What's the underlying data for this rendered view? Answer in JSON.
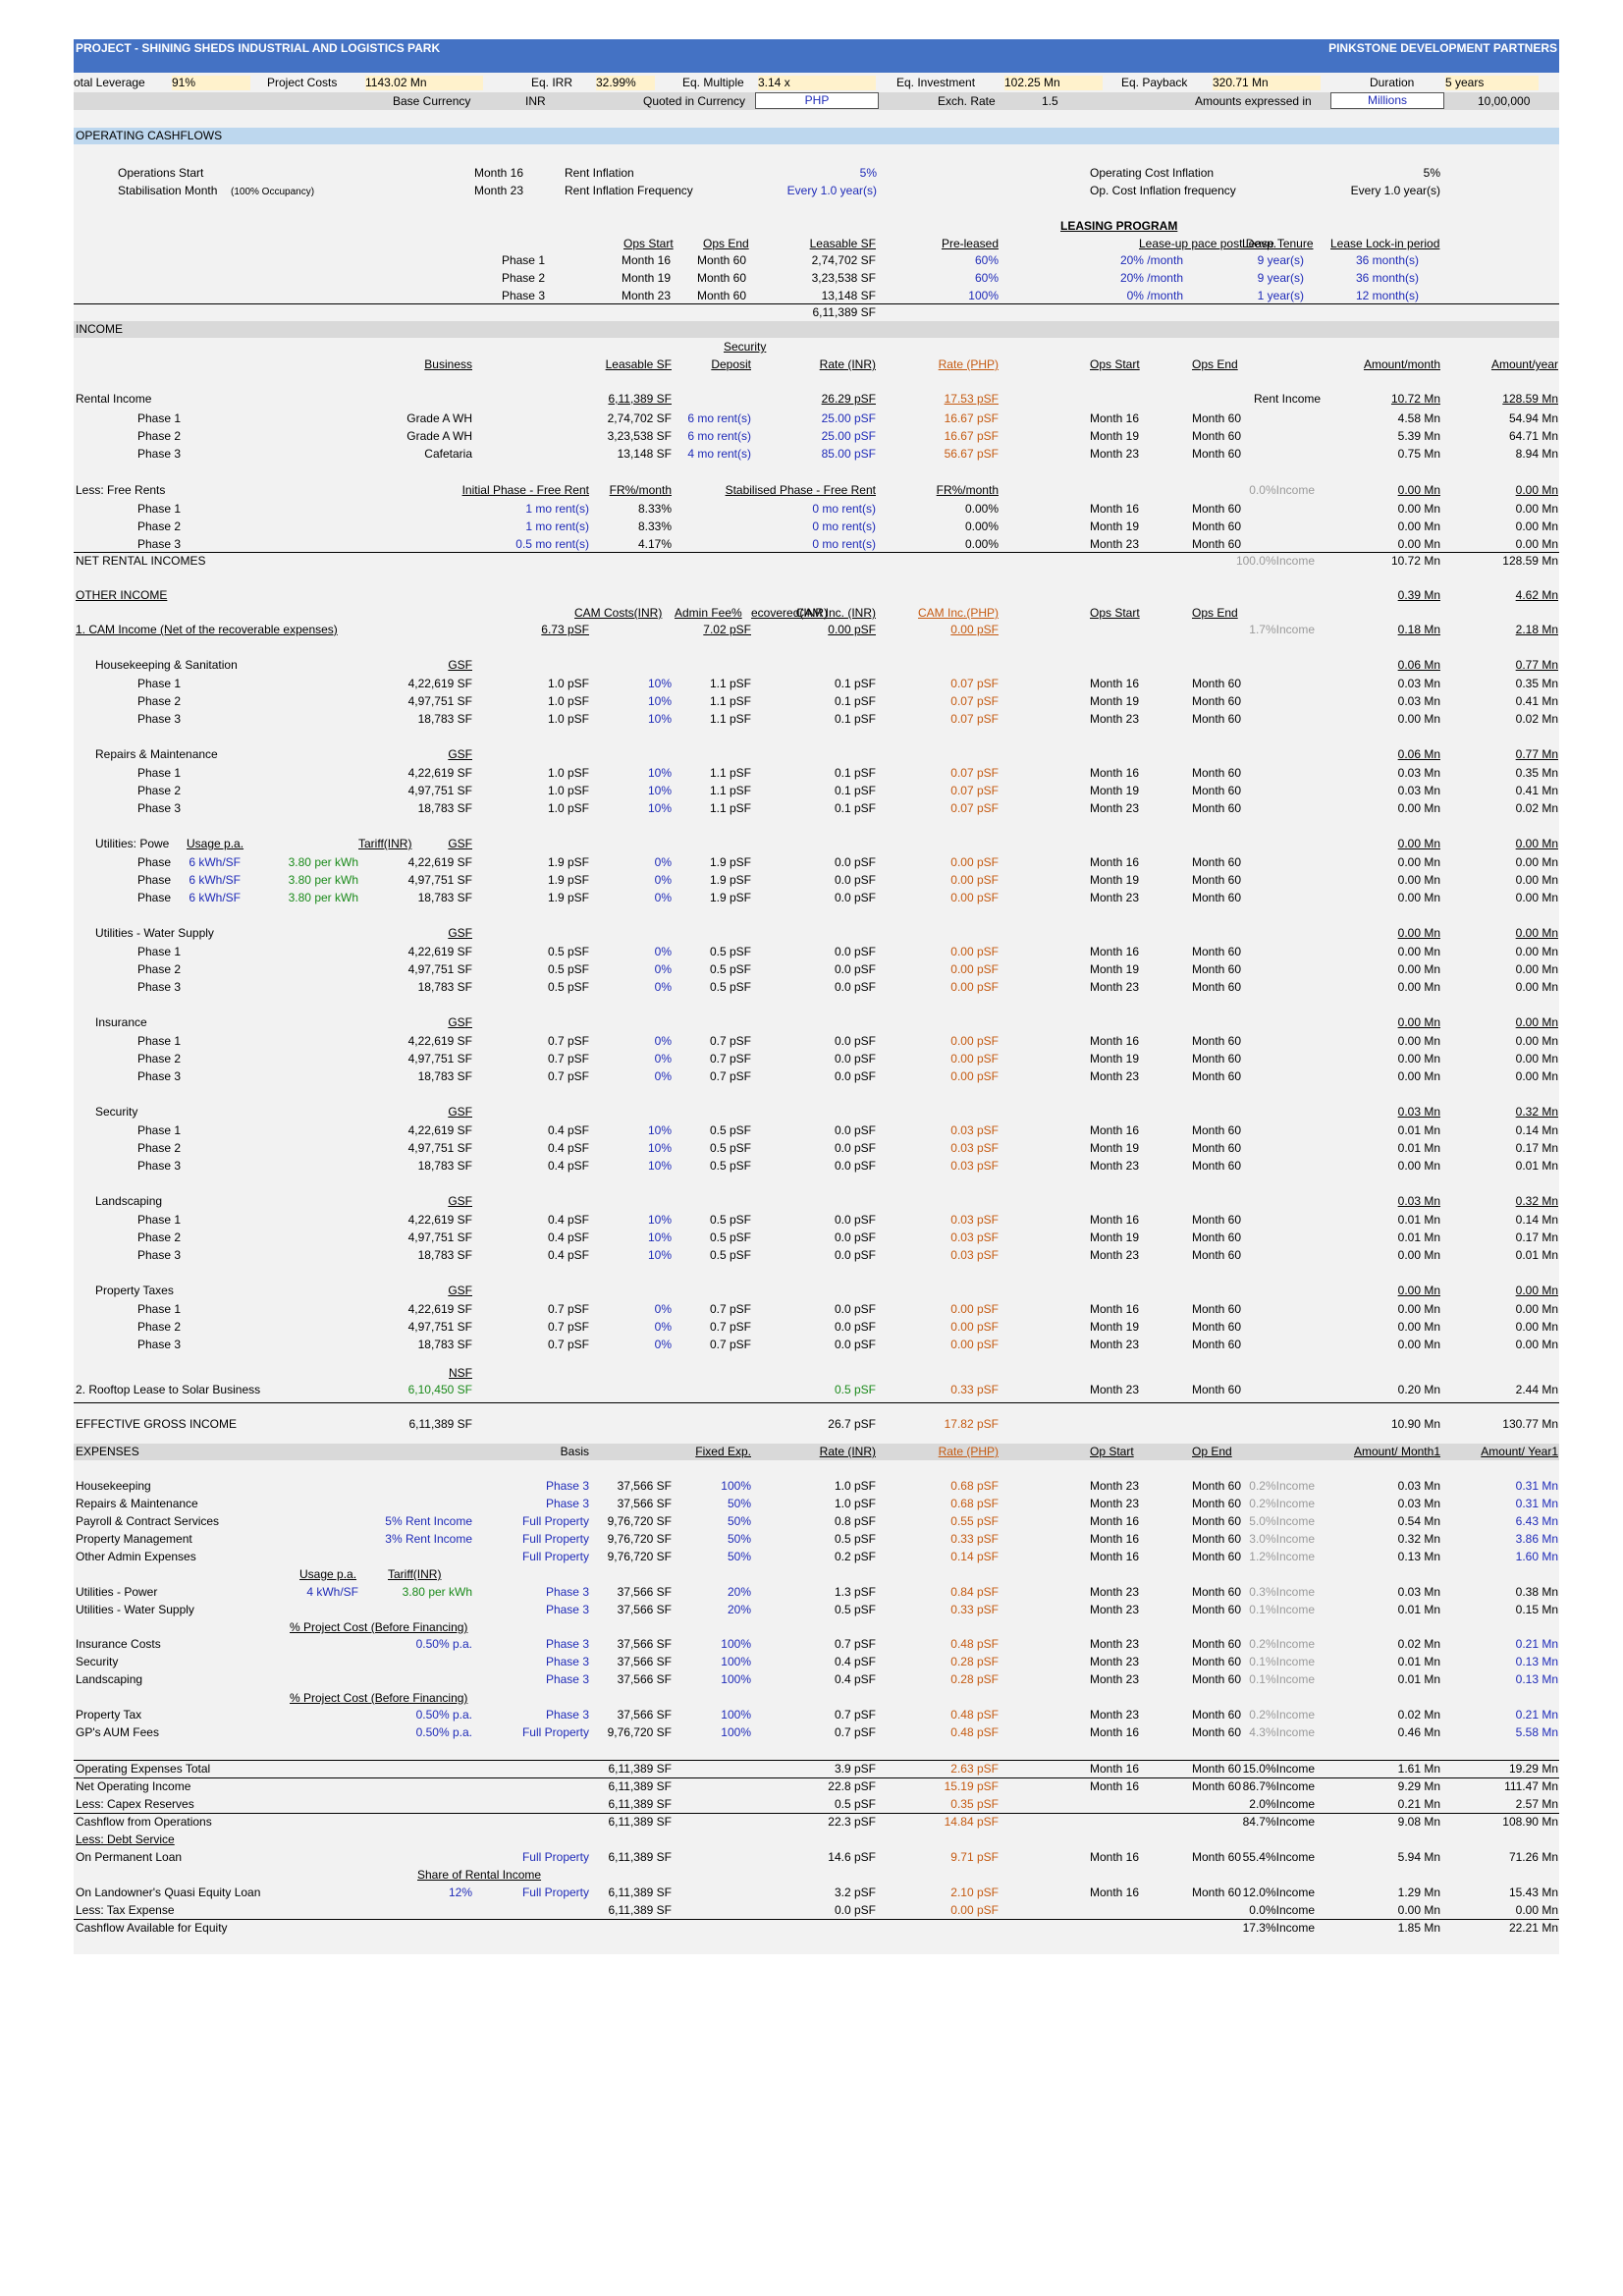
{
  "header": {
    "project": "PROJECT - SHINING SHEDS INDUSTRIAL AND LOGISTICS PARK",
    "company": "PINKSTONE DEVELOPMENT PARTNERS"
  },
  "metrics": {
    "total_leverage_label": "otal Leverage",
    "total_leverage": "91%",
    "project_costs_label": "Project Costs",
    "project_costs": "1143.02 Mn",
    "eq_irr_label": "Eq. IRR",
    "eq_irr": "32.99%",
    "eq_multiple_label": "Eq. Multiple",
    "eq_multiple": "3.14 x",
    "eq_investment_label": "Eq. Investment",
    "eq_investment": "102.25 Mn",
    "eq_payback_label": "Eq. Payback",
    "eq_payback": "320.71 Mn",
    "duration_label": "Duration",
    "duration": "5 years"
  },
  "currency": {
    "base_label": "Base Currency",
    "base": "INR",
    "quoted_label": "Quoted in Currency",
    "quoted": "PHP",
    "exch_label": "Exch. Rate",
    "exch": "1.5",
    "expressed_label": "Amounts expressed in",
    "expressed": "Millions",
    "divisor": "10,00,000"
  },
  "opcf": {
    "title": "OPERATING CASHFLOWS",
    "ops_start_label": "Operations Start",
    "ops_start": "Month 16",
    "stab_label": "Stabilisation Month",
    "stab_note": "(100% Occupancy)",
    "stab": "Month 23",
    "rent_inf_label": "Rent Inflation",
    "rent_inf": "5%",
    "rent_freq_label": "Rent Inflation Frequency",
    "rent_freq": "Every 1.0 year(s)",
    "opcost_inf_label": "Operating Cost Inflation",
    "opcost_inf": "5%",
    "opcost_freq_label": "Op. Cost Inflation frequency",
    "opcost_freq": "Every 1.0 year(s)",
    "leasing_title": "LEASING PROGRAM",
    "cols": [
      "Ops Start",
      "Ops End",
      "Leasable SF",
      "Pre-leased",
      "Lease-up pace post Devp.",
      "Lease Tenure",
      "Lease Lock-in period"
    ],
    "rows": [
      [
        "Phase 1",
        "Month 16",
        "Month 60",
        "2,74,702 SF",
        "60%",
        "20% /month",
        "9 year(s)",
        "36 month(s)"
      ],
      [
        "Phase 2",
        "Month 19",
        "Month 60",
        "3,23,538 SF",
        "60%",
        "20% /month",
        "9 year(s)",
        "36 month(s)"
      ],
      [
        "Phase 3",
        "Month 23",
        "Month 60",
        "13,148 SF",
        "100%",
        "0% /month",
        "1 year(s)",
        "12 month(s)"
      ]
    ],
    "total_sf": "6,11,389 SF"
  },
  "income": {
    "title": "INCOME",
    "cols": [
      "Business",
      "Leasable SF",
      "Security",
      "Deposit",
      "Rate (INR)",
      "Rate (PHP)",
      "Ops Start",
      "Ops End",
      "Amount/month",
      "Amount/year"
    ],
    "rental_label": "Rental Income",
    "rental_sf": "6,11,389 SF",
    "rental_rate": "26.29 pSF",
    "rental_php": "17.53 pSF",
    "rental_tag": "Rent Income",
    "rental_month": "10.72 Mn",
    "rental_year": "128.59 Mn",
    "rental_rows": [
      [
        "Phase 1",
        "Grade A WH",
        "2,74,702 SF",
        "6 mo rent(s)",
        "25.00 pSF",
        "16.67 pSF",
        "Month 16",
        "Month 60",
        "4.58 Mn",
        "54.94 Mn"
      ],
      [
        "Phase 2",
        "Grade A WH",
        "3,23,538 SF",
        "6 mo rent(s)",
        "25.00 pSF",
        "16.67 pSF",
        "Month 19",
        "Month 60",
        "5.39 Mn",
        "64.71 Mn"
      ],
      [
        "Phase 3",
        "Cafetaria",
        "13,148 SF",
        "4 mo rent(s)",
        "85.00 pSF",
        "56.67 pSF",
        "Month 23",
        "Month 60",
        "0.75 Mn",
        "8.94 Mn"
      ]
    ],
    "free_label": "Less: Free Rents",
    "free_cols": [
      "Initial Phase - Free Rent",
      "FR%/month",
      "Stabilised Phase - Free Rent",
      "FR%/month"
    ],
    "free_pct": "0.0%Income",
    "free_month": "0.00 Mn",
    "free_year": "0.00 Mn",
    "free_rows": [
      [
        "Phase 1",
        "1 mo rent(s)",
        "8.33%",
        "0 mo rent(s)",
        "0.00%",
        "Month 16",
        "Month 60",
        "0.00 Mn",
        "0.00 Mn"
      ],
      [
        "Phase 2",
        "1 mo rent(s)",
        "8.33%",
        "0 mo rent(s)",
        "0.00%",
        "Month 19",
        "Month 60",
        "0.00 Mn",
        "0.00 Mn"
      ],
      [
        "Phase 3",
        "0.5 mo rent(s)",
        "4.17%",
        "0 mo rent(s)",
        "0.00%",
        "Month 23",
        "Month 60",
        "0.00 Mn",
        "0.00 Mn"
      ]
    ],
    "net_label": "NET RENTAL INCOMES",
    "net_pct": "100.0%Income",
    "net_month": "10.72 Mn",
    "net_year": "128.59 Mn"
  },
  "other": {
    "title": "OTHER INCOME",
    "month": "0.39 Mn",
    "year": "4.62 Mn",
    "cols": [
      "CAM Costs(INR)",
      "Admin Fee%",
      "ecovered(INR)",
      "CAM Inc. (INR)",
      "CAM Inc.(PHP)",
      "Ops Start",
      "Ops End"
    ],
    "cam_label": "1. CAM Income (Net of the recoverable expenses)",
    "cam_cost": "6.73 pSF",
    "cam_rec": "7.02 pSF",
    "cam_inc": "0.00 pSF",
    "cam_php": "0.00 pSF",
    "cam_pct": "1.7%Income",
    "cam_month": "0.18 Mn",
    "cam_year": "2.18 Mn",
    "gsf": "GSF",
    "groups": [
      {
        "name": "Housekeeping & Sanitation",
        "month": "0.06 Mn",
        "year": "0.77 Mn",
        "rows": [
          [
            "Phase 1",
            "4,22,619 SF",
            "1.0 pSF",
            "10%",
            "1.1 pSF",
            "0.1 pSF",
            "0.07 pSF",
            "Month 16",
            "Month 60",
            "0.03 Mn",
            "0.35 Mn"
          ],
          [
            "Phase 2",
            "4,97,751 SF",
            "1.0 pSF",
            "10%",
            "1.1 pSF",
            "0.1 pSF",
            "0.07 pSF",
            "Month 19",
            "Month 60",
            "0.03 Mn",
            "0.41 Mn"
          ],
          [
            "Phase 3",
            "18,783 SF",
            "1.0 pSF",
            "10%",
            "1.1 pSF",
            "0.1 pSF",
            "0.07 pSF",
            "Month 23",
            "Month 60",
            "0.00 Mn",
            "0.02 Mn"
          ]
        ]
      },
      {
        "name": "Repairs & Maintenance",
        "month": "0.06 Mn",
        "year": "0.77 Mn",
        "rows": [
          [
            "Phase 1",
            "4,22,619 SF",
            "1.0 pSF",
            "10%",
            "1.1 pSF",
            "0.1 pSF",
            "0.07 pSF",
            "Month 16",
            "Month 60",
            "0.03 Mn",
            "0.35 Mn"
          ],
          [
            "Phase 2",
            "4,97,751 SF",
            "1.0 pSF",
            "10%",
            "1.1 pSF",
            "0.1 pSF",
            "0.07 pSF",
            "Month 19",
            "Month 60",
            "0.03 Mn",
            "0.41 Mn"
          ],
          [
            "Phase 3",
            "18,783 SF",
            "1.0 pSF",
            "10%",
            "1.1 pSF",
            "0.1 pSF",
            "0.07 pSF",
            "Month 23",
            "Month 60",
            "0.00 Mn",
            "0.02 Mn"
          ]
        ]
      },
      {
        "name": "Utilities: Powe",
        "usage_label": "Usage p.a.",
        "tariff_label": "Tariff(INR)",
        "month": "0.00 Mn",
        "year": "0.00 Mn",
        "rows": [
          [
            "Phase",
            "4,22,619 SF",
            "1.9 pSF",
            "0%",
            "1.9 pSF",
            "0.0 pSF",
            "0.00 pSF",
            "Month 16",
            "Month 60",
            "0.00 Mn",
            "0.00 Mn",
            "6 kWh/SF",
            "3.80 per kWh"
          ],
          [
            "Phase",
            "4,97,751 SF",
            "1.9 pSF",
            "0%",
            "1.9 pSF",
            "0.0 pSF",
            "0.00 pSF",
            "Month 19",
            "Month 60",
            "0.00 Mn",
            "0.00 Mn",
            "6 kWh/SF",
            "3.80 per kWh"
          ],
          [
            "Phase",
            "18,783 SF",
            "1.9 pSF",
            "0%",
            "1.9 pSF",
            "0.0 pSF",
            "0.00 pSF",
            "Month 23",
            "Month 60",
            "0.00 Mn",
            "0.00 Mn",
            "6 kWh/SF",
            "3.80 per kWh"
          ]
        ]
      },
      {
        "name": "Utilities - Water Supply",
        "month": "0.00 Mn",
        "year": "0.00 Mn",
        "rows": [
          [
            "Phase 1",
            "4,22,619 SF",
            "0.5 pSF",
            "0%",
            "0.5 pSF",
            "0.0 pSF",
            "0.00 pSF",
            "Month 16",
            "Month 60",
            "0.00 Mn",
            "0.00 Mn"
          ],
          [
            "Phase 2",
            "4,97,751 SF",
            "0.5 pSF",
            "0%",
            "0.5 pSF",
            "0.0 pSF",
            "0.00 pSF",
            "Month 19",
            "Month 60",
            "0.00 Mn",
            "0.00 Mn"
          ],
          [
            "Phase 3",
            "18,783 SF",
            "0.5 pSF",
            "0%",
            "0.5 pSF",
            "0.0 pSF",
            "0.00 pSF",
            "Month 23",
            "Month 60",
            "0.00 Mn",
            "0.00 Mn"
          ]
        ]
      },
      {
        "name": "Insurance",
        "month": "0.00 Mn",
        "year": "0.00 Mn",
        "rows": [
          [
            "Phase 1",
            "4,22,619 SF",
            "0.7 pSF",
            "0%",
            "0.7 pSF",
            "0.0 pSF",
            "0.00 pSF",
            "Month 16",
            "Month 60",
            "0.00 Mn",
            "0.00 Mn"
          ],
          [
            "Phase 2",
            "4,97,751 SF",
            "0.7 pSF",
            "0%",
            "0.7 pSF",
            "0.0 pSF",
            "0.00 pSF",
            "Month 19",
            "Month 60",
            "0.00 Mn",
            "0.00 Mn"
          ],
          [
            "Phase 3",
            "18,783 SF",
            "0.7 pSF",
            "0%",
            "0.7 pSF",
            "0.0 pSF",
            "0.00 pSF",
            "Month 23",
            "Month 60",
            "0.00 Mn",
            "0.00 Mn"
          ]
        ]
      },
      {
        "name": "Security",
        "month": "0.03 Mn",
        "year": "0.32 Mn",
        "rows": [
          [
            "Phase 1",
            "4,22,619 SF",
            "0.4 pSF",
            "10%",
            "0.5 pSF",
            "0.0 pSF",
            "0.03 pSF",
            "Month 16",
            "Month 60",
            "0.01 Mn",
            "0.14 Mn"
          ],
          [
            "Phase 2",
            "4,97,751 SF",
            "0.4 pSF",
            "10%",
            "0.5 pSF",
            "0.0 pSF",
            "0.03 pSF",
            "Month 19",
            "Month 60",
            "0.01 Mn",
            "0.17 Mn"
          ],
          [
            "Phase 3",
            "18,783 SF",
            "0.4 pSF",
            "10%",
            "0.5 pSF",
            "0.0 pSF",
            "0.03 pSF",
            "Month 23",
            "Month 60",
            "0.00 Mn",
            "0.01 Mn"
          ]
        ]
      },
      {
        "name": "Landscaping",
        "month": "0.03 Mn",
        "year": "0.32 Mn",
        "rows": [
          [
            "Phase 1",
            "4,22,619 SF",
            "0.4 pSF",
            "10%",
            "0.5 pSF",
            "0.0 pSF",
            "0.03 pSF",
            "Month 16",
            "Month 60",
            "0.01 Mn",
            "0.14 Mn"
          ],
          [
            "Phase 2",
            "4,97,751 SF",
            "0.4 pSF",
            "10%",
            "0.5 pSF",
            "0.0 pSF",
            "0.03 pSF",
            "Month 19",
            "Month 60",
            "0.01 Mn",
            "0.17 Mn"
          ],
          [
            "Phase 3",
            "18,783 SF",
            "0.4 pSF",
            "10%",
            "0.5 pSF",
            "0.0 pSF",
            "0.03 pSF",
            "Month 23",
            "Month 60",
            "0.00 Mn",
            "0.01 Mn"
          ]
        ]
      },
      {
        "name": "Property Taxes",
        "month": "0.00 Mn",
        "year": "0.00 Mn",
        "rows": [
          [
            "Phase 1",
            "4,22,619 SF",
            "0.7 pSF",
            "0%",
            "0.7 pSF",
            "0.0 pSF",
            "0.00 pSF",
            "Month 16",
            "Month 60",
            "0.00 Mn",
            "0.00 Mn"
          ],
          [
            "Phase 2",
            "4,97,751 SF",
            "0.7 pSF",
            "0%",
            "0.7 pSF",
            "0.0 pSF",
            "0.00 pSF",
            "Month 19",
            "Month 60",
            "0.00 Mn",
            "0.00 Mn"
          ],
          [
            "Phase 3",
            "18,783 SF",
            "0.7 pSF",
            "0%",
            "0.7 pSF",
            "0.0 pSF",
            "0.00 pSF",
            "Month 23",
            "Month 60",
            "0.00 Mn",
            "0.00 Mn"
          ]
        ]
      }
    ],
    "nsf": "NSF",
    "rooftop": [
      "2. Rooftop Lease to Solar Business",
      "6,10,450 SF",
      "0.5 pSF",
      "0.33 pSF",
      "Month 23",
      "Month 60",
      "0.20 Mn",
      "2.44 Mn"
    ]
  },
  "egi": [
    "EFFECTIVE GROSS INCOME",
    "6,11,389 SF",
    "26.7 pSF",
    "17.82 pSF",
    "10.90 Mn",
    "130.77 Mn"
  ],
  "expenses": {
    "title": "EXPENSES",
    "cols": [
      "Basis",
      "Fixed Exp.",
      "Rate (INR)",
      "Rate (PHP)",
      "Op Start",
      "Op End",
      "Amount/ Month1",
      "Amount/ Year1"
    ],
    "usage_label": "Usage p.a.",
    "tariff_label": "Tariff(INR)",
    "pct_cost_label": "% Project Cost (Before Financing)",
    "rows_a": [
      [
        "Housekeeping",
        "",
        "Phase 3",
        "37,566 SF",
        "100%",
        "1.0 pSF",
        "0.68 pSF",
        "Month 23",
        "Month 60",
        "0.2%Income",
        "0.03 Mn",
        "0.31 Mn"
      ],
      [
        "Repairs & Maintenance",
        "",
        "Phase 3",
        "37,566 SF",
        "50%",
        "1.0 pSF",
        "0.68 pSF",
        "Month 23",
        "Month 60",
        "0.2%Income",
        "0.03 Mn",
        "0.31 Mn"
      ],
      [
        "Payroll & Contract Services",
        "5% Rent Income",
        "Full Property",
        "9,76,720 SF",
        "50%",
        "0.8 pSF",
        "0.55 pSF",
        "Month 16",
        "Month 60",
        "5.0%Income",
        "0.54 Mn",
        "6.43 Mn"
      ],
      [
        "Property Management",
        "3% Rent Income",
        "Full Property",
        "9,76,720 SF",
        "50%",
        "0.5 pSF",
        "0.33 pSF",
        "Month 16",
        "Month 60",
        "3.0%Income",
        "0.32 Mn",
        "3.86 Mn"
      ],
      [
        "Other Admin Expenses",
        "",
        "Full Property",
        "9,76,720 SF",
        "50%",
        "0.2 pSF",
        "0.14 pSF",
        "Month 16",
        "Month 60",
        "1.2%Income",
        "0.13 Mn",
        "1.60 Mn"
      ]
    ],
    "rows_b": [
      [
        "Utilities - Power",
        "4 kWh/SF",
        "3.80 per kWh",
        "Phase 3",
        "37,566 SF",
        "20%",
        "1.3 pSF",
        "0.84 pSF",
        "Month 23",
        "Month 60",
        "0.3%Income",
        "0.03 Mn",
        "0.38 Mn"
      ],
      [
        "Utilities - Water Supply",
        "",
        "",
        "Phase 3",
        "37,566 SF",
        "20%",
        "0.5 pSF",
        "0.33 pSF",
        "Month 23",
        "Month 60",
        "0.1%Income",
        "0.01 Mn",
        "0.15 Mn"
      ]
    ],
    "rows_c": [
      [
        "Insurance Costs",
        "0.50% p.a.",
        "Phase 3",
        "37,566 SF",
        "100%",
        "0.7 pSF",
        "0.48 pSF",
        "Month 23",
        "Month 60",
        "0.2%Income",
        "0.02 Mn",
        "0.21 Mn"
      ],
      [
        "Security",
        "",
        "Phase 3",
        "37,566 SF",
        "100%",
        "0.4 pSF",
        "0.28 pSF",
        "Month 23",
        "Month 60",
        "0.1%Income",
        "0.01 Mn",
        "0.13 Mn"
      ],
      [
        "Landscaping",
        "",
        "Phase 3",
        "37,566 SF",
        "100%",
        "0.4 pSF",
        "0.28 pSF",
        "Month 23",
        "Month 60",
        "0.1%Income",
        "0.01 Mn",
        "0.13 Mn"
      ]
    ],
    "rows_d": [
      [
        "Property Tax",
        "0.50% p.a.",
        "Phase 3",
        "37,566 SF",
        "100%",
        "0.7 pSF",
        "0.48 pSF",
        "Month 23",
        "Month 60",
        "0.2%Income",
        "0.02 Mn",
        "0.21 Mn"
      ],
      [
        "GP's AUM Fees",
        "0.50% p.a.",
        "Full Property",
        "9,76,720 SF",
        "100%",
        "0.7 pSF",
        "0.48 pSF",
        "Month 16",
        "Month 60",
        "4.3%Income",
        "0.46 Mn",
        "5.58 Mn"
      ]
    ]
  },
  "summary": {
    "opex": [
      "Operating Expenses Total",
      "6,11,389 SF",
      "3.9 pSF",
      "2.63 pSF",
      "Month 16",
      "Month 60",
      "15.0%Income",
      "1.61 Mn",
      "19.29 Mn"
    ],
    "noi": [
      "Net Operating Income",
      "6,11,389 SF",
      "22.8 pSF",
      "15.19 pSF",
      "Month 16",
      "Month 60",
      "86.7%Income",
      "9.29 Mn",
      "111.47 Mn"
    ],
    "capex": [
      "Less: Capex Reserves",
      "6,11,389 SF",
      "0.5 pSF",
      "0.35 pSF",
      "",
      "",
      "2.0%Income",
      "0.21 Mn",
      "2.57 Mn"
    ],
    "cfo": [
      "Cashflow from Operations",
      "6,11,389 SF",
      "22.3 pSF",
      "14.84 pSF",
      "",
      "",
      "84.7%Income",
      "9.08 Mn",
      "108.90 Mn"
    ],
    "debt_label": "Less: Debt Service",
    "perm": [
      "On Permanent Loan",
      "Full Property",
      "6,11,389 SF",
      "14.6 pSF",
      "9.71 pSF",
      "Month 16",
      "Month 60",
      "55.4%Income",
      "5.94 Mn",
      "71.26 Mn"
    ],
    "share_label": "Share of Rental Income",
    "quasi": [
      "On Landowner's Quasi Equity Loan",
      "12%",
      "Full Property",
      "6,11,389 SF",
      "3.2 pSF",
      "2.10 pSF",
      "Month 16",
      "Month 60",
      "12.0%Income",
      "1.29 Mn",
      "15.43 Mn"
    ],
    "tax": [
      "Less: Tax Expense",
      "6,11,389 SF",
      "0.0 pSF",
      "0.00 pSF",
      "",
      "",
      "0.0%Income",
      "0.00 Mn",
      "0.00 Mn"
    ],
    "cfae": [
      "Cashflow Available for Equity",
      "",
      "",
      "",
      "",
      "",
      "17.3%Income",
      "1.85 Mn",
      "22.21 Mn"
    ]
  },
  "colors": {
    "header_bg": "#4472c4",
    "input_blue": "#1f2bb8",
    "php_brown": "#843c0c",
    "green": "#1a8a1a"
  }
}
